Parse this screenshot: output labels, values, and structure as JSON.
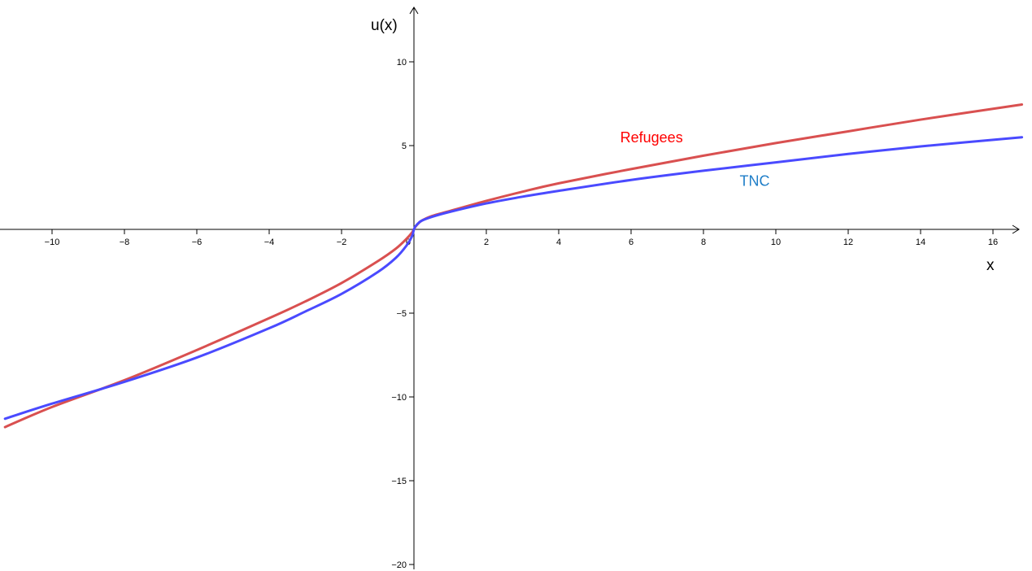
{
  "chart_data": {
    "type": "line",
    "title": "",
    "xlabel": "x",
    "ylabel": "u(x)",
    "xlim": [
      -11.3,
      16.8
    ],
    "ylim": [
      -20.5,
      13.2
    ],
    "grid": false,
    "x_ticks": [
      -10,
      -8,
      -6,
      -4,
      -2,
      2,
      4,
      6,
      8,
      10,
      12,
      14,
      16
    ],
    "y_ticks": [
      10,
      5,
      -5,
      -10,
      -15,
      -20
    ],
    "x_tick_labels": [
      "−10",
      "−8",
      "−6",
      "−4",
      "−2",
      "2",
      "4",
      "6",
      "8",
      "10",
      "12",
      "14",
      "16"
    ],
    "y_tick_labels": [
      "10",
      "5",
      "−5",
      "−10",
      "−15",
      "−20"
    ],
    "origin_label": "0",
    "series": [
      {
        "name": "Refugees",
        "color": "#d95050",
        "label_color": "#ff0000",
        "x": [
          -11.3,
          -10,
          -8,
          -6,
          -4,
          -3,
          -2,
          -1,
          -0.5,
          -0.2,
          -0.05,
          0,
          0.05,
          0.2,
          0.5,
          1,
          2,
          3,
          4,
          6,
          8,
          10,
          12,
          14,
          16.8
        ],
        "y": [
          -11.8,
          -10.6,
          -9.0,
          -7.2,
          -5.3,
          -4.3,
          -3.2,
          -1.9,
          -1.15,
          -0.55,
          -0.18,
          0,
          0.18,
          0.5,
          0.8,
          1.1,
          1.7,
          2.25,
          2.75,
          3.6,
          4.4,
          5.15,
          5.85,
          6.55,
          7.45
        ]
      },
      {
        "name": "TNC",
        "color": "#4a4aff",
        "label_color": "#1f7ec8",
        "x": [
          -11.3,
          -10,
          -8,
          -6,
          -4,
          -3,
          -2,
          -1,
          -0.5,
          -0.2,
          -0.05,
          0,
          0.05,
          0.2,
          0.5,
          1,
          2,
          3,
          4,
          6,
          8,
          10,
          12,
          14,
          16.8
        ],
        "y": [
          -11.3,
          -10.4,
          -9.1,
          -7.65,
          -5.9,
          -4.9,
          -3.85,
          -2.55,
          -1.7,
          -0.95,
          -0.4,
          0,
          0.2,
          0.5,
          0.75,
          1.05,
          1.55,
          1.95,
          2.3,
          2.95,
          3.5,
          4.0,
          4.5,
          4.95,
          5.5
        ]
      }
    ],
    "annotations": [
      {
        "text": "Refugees",
        "x": 5.7,
        "y": 5.2,
        "series": "Refugees"
      },
      {
        "text": "TNC",
        "x": 9.0,
        "y": 2.6,
        "series": "TNC"
      }
    ]
  }
}
